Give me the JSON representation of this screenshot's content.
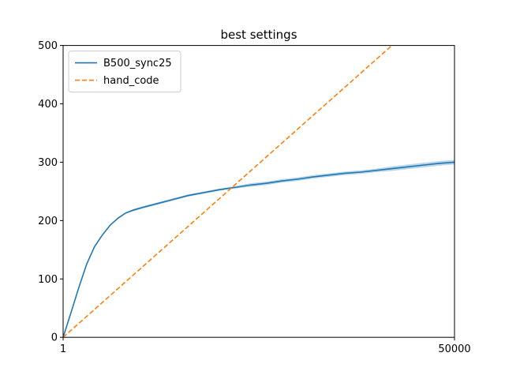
{
  "chart_data": {
    "type": "line",
    "title": "best settings",
    "xlabel": "",
    "ylabel": "",
    "xlim": [
      1,
      50000
    ],
    "ylim": [
      0,
      500
    ],
    "x_tick_labels": [
      "1",
      "50000"
    ],
    "y_tick_labels": [
      "0",
      "100",
      "200",
      "300",
      "400",
      "500"
    ],
    "y_ticks": [
      0,
      100,
      200,
      300,
      400,
      500
    ],
    "x_ticks": [
      1,
      50000
    ],
    "grid": false,
    "legend_position": "top-left",
    "series": [
      {
        "name": "B500_sync25",
        "color": "#1f77b4",
        "style": "solid",
        "band": true,
        "x": [
          1,
          1000,
          2000,
          3000,
          4000,
          5000,
          6000,
          7000,
          8000,
          9000,
          10000,
          12000,
          14000,
          16000,
          18000,
          20000,
          22000,
          24000,
          26000,
          28000,
          30000,
          32000,
          34000,
          36000,
          38000,
          40000,
          42000,
          44000,
          46000,
          48000,
          50000
        ],
        "y": [
          0,
          42,
          85,
          125,
          155,
          175,
          192,
          204,
          213,
          218,
          222,
          229,
          236,
          243,
          248,
          253,
          257,
          261,
          264,
          268,
          271,
          275,
          278,
          281,
          283,
          286,
          289,
          292,
          295,
          298,
          300
        ],
        "band_halfwidth": [
          0,
          1,
          1,
          1,
          1,
          1,
          1,
          1,
          1,
          2,
          2,
          2,
          2,
          2,
          2,
          2,
          2,
          3,
          3,
          3,
          3,
          3,
          3,
          3,
          3,
          3,
          4,
          4,
          4,
          4,
          4
        ]
      },
      {
        "name": "hand_code",
        "color": "#ff7f0e",
        "style": "dashed",
        "band": false,
        "x": [
          1,
          42000
        ],
        "y": [
          0,
          500
        ]
      }
    ]
  }
}
